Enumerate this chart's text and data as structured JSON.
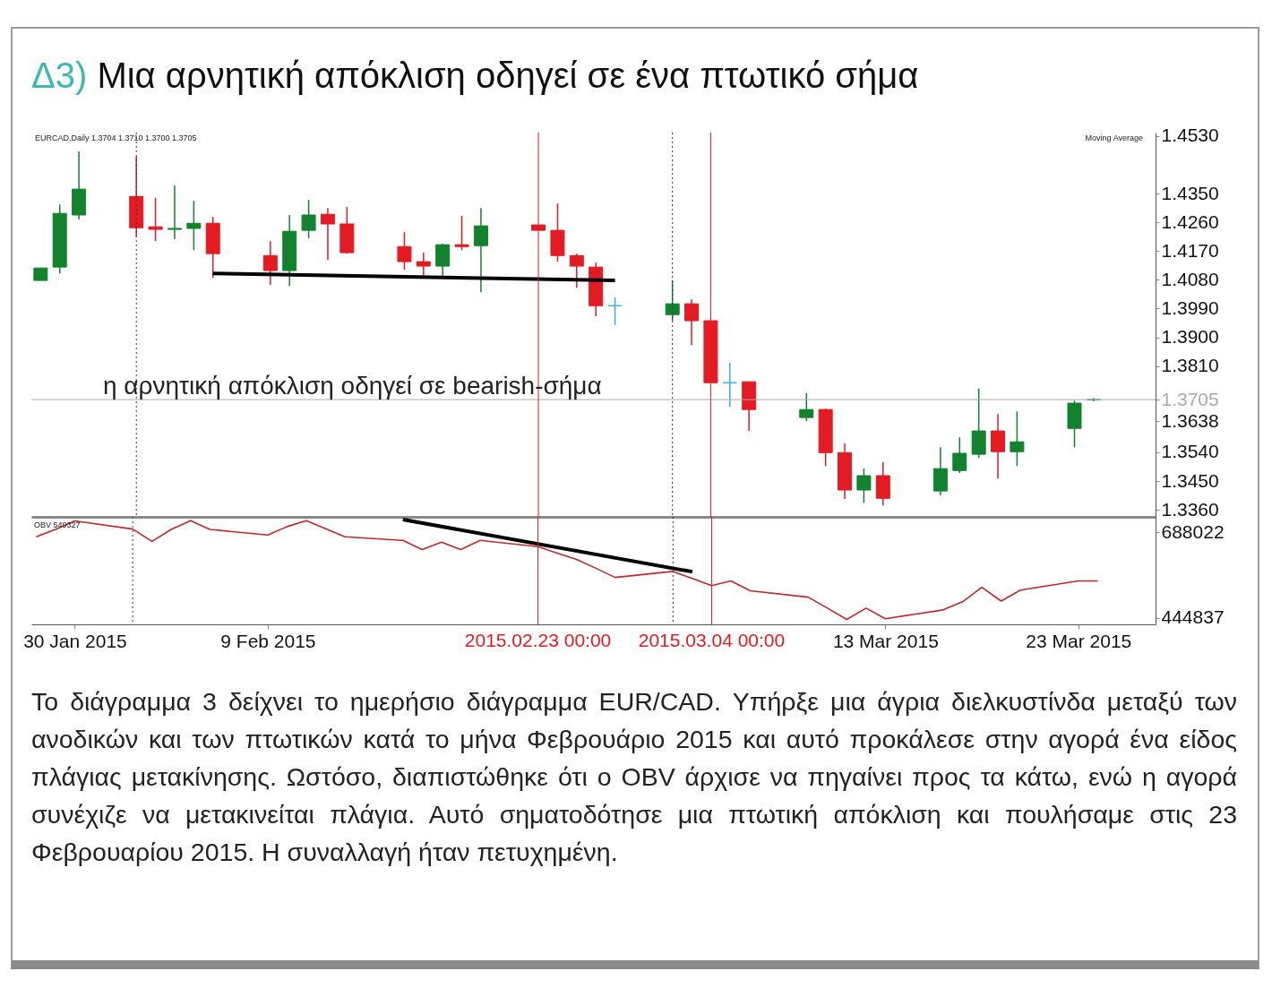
{
  "chart_data": [
    {
      "type": "candlestick",
      "title": "Δ3) Μια αρνητική απόκλιση οδηγεί σε ένα πτωτικό σήμα",
      "x": [
        "2015-01-28",
        "2015-01-29",
        "2015-01-30",
        "2015-02-02",
        "2015-02-03",
        "2015-02-04",
        "2015-02-05",
        "2015-02-06",
        "2015-02-09",
        "2015-02-10",
        "2015-02-11",
        "2015-02-12",
        "2015-02-13",
        "2015-02-16",
        "2015-02-17",
        "2015-02-18",
        "2015-02-19",
        "2015-02-20",
        "2015-02-23",
        "2015-02-24",
        "2015-02-25",
        "2015-02-26",
        "2015-02-27",
        "2015-03-02",
        "2015-03-03",
        "2015-03-04",
        "2015-03-05",
        "2015-03-06",
        "2015-03-09",
        "2015-03-10",
        "2015-03-11",
        "2015-03-12",
        "2015-03-13",
        "2015-03-16",
        "2015-03-17",
        "2015-03-18",
        "2015-03-19",
        "2015-03-20",
        "2015-03-23",
        "2015-03-24"
      ],
      "xlim": [
        "2015-01-27T18:00",
        "2015-03-27"
      ],
      "ohlc": [
        [
          1.4078,
          1.4117,
          1.4078,
          1.4117
        ],
        [
          1.412,
          1.4316,
          1.41,
          1.4288
        ],
        [
          1.4283,
          1.4482,
          1.4269,
          1.4364
        ],
        [
          1.4341,
          1.4465,
          1.4215,
          1.4243
        ],
        [
          1.4246,
          1.4336,
          1.4201,
          1.4238
        ],
        [
          1.4238,
          1.4375,
          1.4207,
          1.4241
        ],
        [
          1.4241,
          1.4327,
          1.4173,
          1.4257
        ],
        [
          1.4257,
          1.4277,
          1.4086,
          1.4162
        ],
        [
          1.4156,
          1.4201,
          1.4064,
          1.4109
        ],
        [
          1.4109,
          1.4283,
          1.4061,
          1.4232
        ],
        [
          1.4235,
          1.433,
          1.421,
          1.4283
        ],
        [
          1.4285,
          1.4305,
          1.4142,
          1.4255
        ],
        [
          1.4255,
          1.4308,
          1.4162,
          1.4165
        ],
        [
          1.4184,
          1.4229,
          1.4112,
          1.4137
        ],
        [
          1.4137,
          1.4165,
          1.4095,
          1.4123
        ],
        [
          1.4123,
          1.4193,
          1.4092,
          1.419
        ],
        [
          1.419,
          1.428,
          1.4173,
          1.4184
        ],
        [
          1.4187,
          1.4305,
          1.4041,
          1.4249
        ],
        [
          1.4252,
          1.4252,
          1.4235,
          1.4235
        ],
        [
          1.4235,
          1.4319,
          1.4137,
          1.4156
        ],
        [
          1.4156,
          1.4162,
          1.4055,
          1.4123
        ],
        [
          1.412,
          1.4134,
          1.3966,
          1.3999
        ],
        [
          1.3999,
          1.4025,
          1.3938,
          1.3999
        ],
        [
          1.3971,
          1.4078,
          1.3952,
          1.4005
        ],
        [
          1.4005,
          1.4019,
          1.3876,
          1.3952
        ],
        [
          1.3952,
          1.3952,
          1.3758,
          1.3758
        ],
        [
          1.3758,
          1.382,
          1.3682,
          1.3758
        ],
        [
          1.3761,
          1.3761,
          1.3607,
          1.3674
        ],
        [
          1.3649,
          1.3725,
          1.3638,
          1.3674
        ],
        [
          1.3674,
          1.3677,
          1.3497,
          1.3539
        ],
        [
          1.3539,
          1.3568,
          1.3394,
          1.3422
        ],
        [
          1.3422,
          1.3489,
          1.3382,
          1.3467
        ],
        [
          1.3467,
          1.3509,
          1.3374,
          1.3396
        ],
        [
          1.3419,
          1.3556,
          1.3405,
          1.3489
        ],
        [
          1.3483,
          1.3587,
          1.3475,
          1.3537
        ],
        [
          1.3534,
          1.3739,
          1.3523,
          1.3607
        ],
        [
          1.3607,
          1.366,
          1.3458,
          1.3542
        ],
        [
          1.3542,
          1.3668,
          1.3497,
          1.3573
        ],
        [
          1.3615,
          1.3702,
          1.3556,
          1.3694
        ],
        [
          1.3704,
          1.371,
          1.37,
          1.3705
        ]
      ],
      "colors": [
        "#12822e",
        "#12822e",
        "#12822e",
        "#e31b23",
        "#e31b23",
        "#12822e",
        "#12822e",
        "#e31b23",
        "#e31b23",
        "#12822e",
        "#12822e",
        "#e31b23",
        "#e31b23",
        "#e31b23",
        "#e31b23",
        "#12822e",
        "#e31b23",
        "#12822e",
        "#e31b23",
        "#e31b23",
        "#e31b23",
        "#e31b23",
        "#3fa9dc",
        "#12822e",
        "#e31b23",
        "#e31b23",
        "#3fa9dc",
        "#e31b23",
        "#12822e",
        "#e31b23",
        "#e31b23",
        "#12822e",
        "#e31b23",
        "#12822e",
        "#12822e",
        "#12822e",
        "#e31b23",
        "#12822e",
        "#12822e",
        "#12822e"
      ],
      "series": [
        {
          "type": "line",
          "x": [
            "2015-02-06",
            "2015-02-27"
          ],
          "values": [
            1.41,
            1.4078
          ],
          "color": "#000000"
        }
      ],
      "ylim": [
        1.3338,
        1.4541
      ],
      "yticks": [
        {
          "value": 1.453,
          "label": "1.4530"
        },
        {
          "value": 1.435,
          "label": "1.4350"
        },
        {
          "value": 1.426,
          "label": "1.4260"
        },
        {
          "value": 1.417,
          "label": "1.4170"
        },
        {
          "value": 1.408,
          "label": "1.4080"
        },
        {
          "value": 1.399,
          "label": "1.3990"
        },
        {
          "value": 1.39,
          "label": "1.3900"
        },
        {
          "value": 1.381,
          "label": "1.3810"
        },
        1.3705,
        1.3638,
        {
          "value": 1.354,
          "label": "1.3540"
        },
        {
          "value": 1.345,
          "label": "1.3450"
        },
        {
          "value": 1.336,
          "label": "1.3360"
        }
      ],
      "tick_labels": "y",
      "ref_lines": [
        {
          "axis": "y",
          "value": 1.3705,
          "color": "#aaaaaa"
        },
        {
          "axis": "x",
          "value": "2015-02-02",
          "color": "#333333",
          "line_style": "dotted"
        },
        {
          "axis": "x",
          "value": "2015-02-23",
          "color": "#e31b23"
        },
        {
          "axis": "x",
          "value": "2015-03-02",
          "color": "#333333",
          "line_style": "dotted"
        },
        {
          "axis": "x",
          "value": "2015-03-04",
          "color": "#e31b23"
        }
      ],
      "annotations": [
        "EURCAD,Daily 1.3704 1.3710 1.3700 1.3705",
        "Moving Average",
        "η αρνητική απόκλιση οδηγεί σε bearish-σήμα",
        "Το διάγραμμα 3 δείχνει το ημερήσιο διάγραμμα EUR/CAD. Υπήρξε μια άγρια διελκυστίνδα μεταξύ των ανοδικών και των πτωτικών κατά το μήνα Φεβρουάριο 2015 και αυτό προκάλεσε στην αγορά ένα είδος πλάγιας μετακίνησης. Ωστόσο, διαπιστώθηκε ότι ο OBV άρχισε να πηγαίνει προς τα κάτω, ενώ η αγορά συνέχιζε να μετακινείται πλάγια. Αυτό σηματοδότησε μια πτωτική απόκλιση και πουλήσαμε στις 23 Φεβρουαρίου 2015. Η συναλλαγή ήταν πετυχημένη."
      ]
    },
    {
      "type": "line",
      "x": [
        "2015-01-28",
        "2015-01-29",
        "2015-01-30",
        "2015-02-02",
        "2015-02-03",
        "2015-02-04",
        "2015-02-05",
        "2015-02-06",
        "2015-02-09",
        "2015-02-10",
        "2015-02-11",
        "2015-02-12",
        "2015-02-13",
        "2015-02-16",
        "2015-02-17",
        "2015-02-18",
        "2015-02-19",
        "2015-02-20",
        "2015-02-23",
        "2015-02-24",
        "2015-02-25",
        "2015-02-26",
        "2015-02-27",
        "2015-03-02",
        "2015-03-03",
        "2015-03-04",
        "2015-03-05",
        "2015-03-06",
        "2015-03-09",
        "2015-03-10",
        "2015-03-11",
        "2015-03-12",
        "2015-03-13",
        "2015-03-16",
        "2015-03-17",
        "2015-03-18",
        "2015-03-19",
        "2015-03-20",
        "2015-03-23",
        "2015-03-24"
      ],
      "xlim": [
        "2015-01-27T18:00",
        "2015-03-27"
      ],
      "series": [
        {
          "color": "#c1272d",
          "values": [
            675000,
            696000,
            720000,
            697000,
            662000,
            696000,
            721000,
            696000,
            680000,
            704000,
            721000,
            698000,
            675000,
            665000,
            639000,
            660000,
            639000,
            665000,
            647000,
            629000,
            611000,
            586000,
            560000,
            577000,
            557000,
            537000,
            550000,
            522000,
            504000,
            473000,
            441000,
            473000,
            443000,
            468000,
            491000,
            532000,
            493000,
            524000,
            550000,
            550000
          ]
        },
        {
          "type": "line",
          "x": [
            "2015-02-16",
            "2015-03-03"
          ],
          "values": [
            724000,
            576000
          ],
          "color": "#000000"
        }
      ],
      "ylim": [
        427000,
        731600
      ],
      "yticks": [
        688022,
        444837
      ],
      "xticks": [
        {
          "value": "2015-01-30",
          "label": "30 Jan 2015"
        },
        {
          "value": "2015-02-09",
          "label": "9 Feb 2015"
        },
        {
          "value": "2015-03-13",
          "label": "13 Mar 2015"
        },
        {
          "value": "2015-03-23",
          "label": "23 Mar 2015"
        }
      ],
      "ref_lines": [
        {
          "axis": "x",
          "value": "2015-02-02",
          "color": "#333333",
          "line_style": "dotted"
        },
        {
          "axis": "x",
          "value": "2015-02-23",
          "color": "#e31b23",
          "label": "2015.02.23 00:00"
        },
        {
          "axis": "x",
          "value": "2015-03-02",
          "color": "#333333",
          "line_style": "dotted"
        },
        {
          "axis": "x",
          "value": "2015-03-04",
          "color": "#e31b23",
          "label": "2015.03.04 00:00"
        }
      ],
      "annotations": [
        "OBV 549327"
      ]
    }
  ]
}
